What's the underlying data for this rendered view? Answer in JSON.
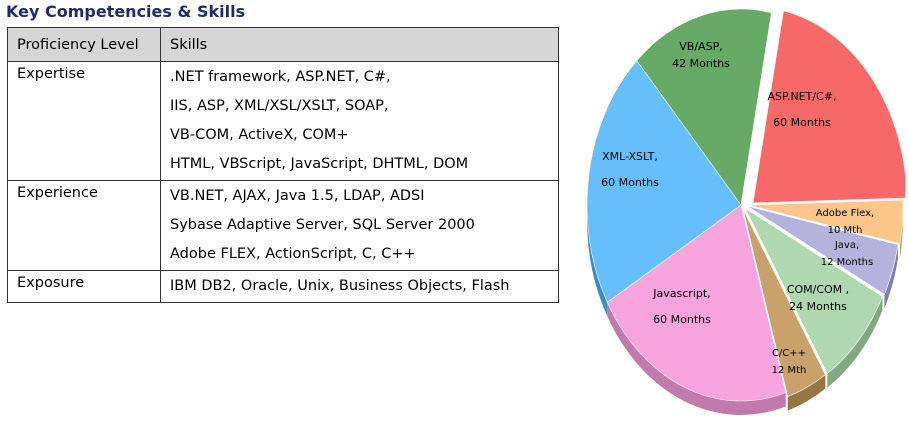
{
  "heading": "Key Competencies & Skills",
  "table": {
    "headers": [
      "Proficiency Level",
      "Skills"
    ],
    "rows": [
      {
        "level": "Expertise",
        "skills": [
          ".NET framework, ASP.NET, C#,",
          "IIS, ASP, XML/XSL/XSLT, SOAP,",
          "VB-COM, ActiveX, COM+",
          "HTML, VBScript, JavaScript, DHTML, DOM"
        ]
      },
      {
        "level": "Experience",
        "skills": [
          "VB.NET,  AJAX, Java 1.5, LDAP, ADSI",
          "Sybase Adaptive Server, SQL Server 2000",
          "Adobe FLEX, ActionScript, C, C++"
        ]
      },
      {
        "level": "Exposure",
        "skills": [
          "IBM DB2, Oracle, Unix, Business Objects, Flash"
        ]
      }
    ]
  },
  "chart_data": {
    "type": "pie",
    "unit": "Months",
    "slices": [
      {
        "label_lines": [
          "ASP.NET/C#,",
          "60  Months"
        ],
        "value": 60,
        "color": "#f76969",
        "side": "#b24747"
      },
      {
        "label_lines": [
          "Adobe Flex,",
          "10 Mth"
        ],
        "value": 10,
        "color": "#fcc58a",
        "side": "#c9945d"
      },
      {
        "label_lines": [
          "Java,",
          "12 Months"
        ],
        "value": 12,
        "color": "#b3b3dd",
        "side": "#8080ad"
      },
      {
        "label_lines": [
          "COM/COM ,",
          "24 Months"
        ],
        "value": 24,
        "color": "#b0d8b0",
        "side": "#82a882"
      },
      {
        "label_lines": [
          "C/C++",
          "12 Mth"
        ],
        "value": 12,
        "color": "#c8a26a",
        "side": "#977645"
      },
      {
        "label_lines": [
          "Javascript,",
          "60  Months"
        ],
        "value": 60,
        "color": "#f7a3de",
        "side": "#c07aab"
      },
      {
        "label_lines": [
          "XML-XSLT,",
          "60 Months"
        ],
        "value": 60,
        "color": "#66bffa",
        "side": "#3d8cc2"
      },
      {
        "label_lines": [
          "VB/ASP,",
          "42 Months"
        ],
        "value": 42,
        "color": "#66aa66",
        "side": "#467d46"
      }
    ]
  }
}
